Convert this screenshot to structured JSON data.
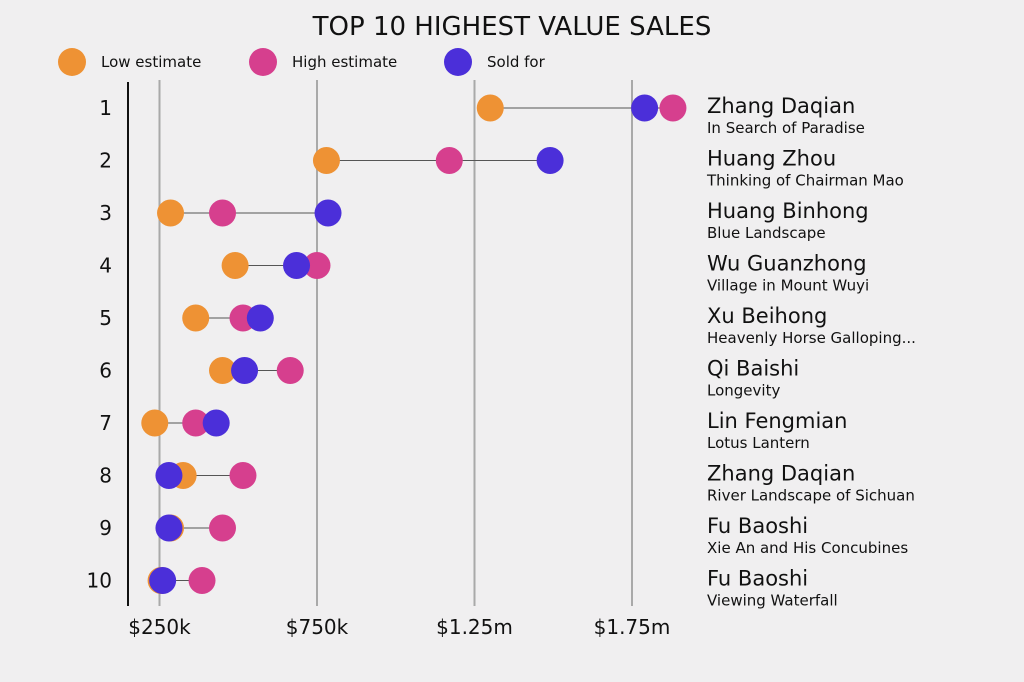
{
  "chart_data": {
    "type": "dot-range",
    "title": "TOP 10 HIGHEST VALUE SALES",
    "legend": [
      {
        "key": "low",
        "label": "Low estimate",
        "color": "#ee9234"
      },
      {
        "key": "high",
        "label": "High estimate",
        "color": "#d63f8e"
      },
      {
        "key": "sold",
        "label": "Sold for",
        "color": "#4b2fd9"
      }
    ],
    "x_ticks": [
      {
        "value": 250000,
        "label": "$250k"
      },
      {
        "value": 750000,
        "label": "$750k"
      },
      {
        "value": 1250000,
        "label": "$1.25m"
      },
      {
        "value": 1750000,
        "label": "$1.75m"
      }
    ],
    "xlim": [
      150000,
      1950000
    ],
    "grid": true,
    "rows": [
      {
        "rank": "1",
        "artist": "Zhang Daqian",
        "work": "In Search of Paradise",
        "low": 1300000,
        "high": 1880000,
        "sold": 1790000
      },
      {
        "rank": "2",
        "artist": "Huang Zhou",
        "work": "Thinking of Chairman Mao",
        "low": 780000,
        "high": 1170000,
        "sold": 1490000
      },
      {
        "rank": "3",
        "artist": "Huang Binhong",
        "work": "Blue Landscape",
        "low": 285000,
        "high": 450000,
        "sold": 785000
      },
      {
        "rank": "4",
        "artist": "Wu Guanzhong",
        "work": "Village in Mount Wuyi",
        "low": 490000,
        "high": 750000,
        "sold": 685000
      },
      {
        "rank": "5",
        "artist": "Xu Beihong",
        "work": "Heavenly Horse Galloping...",
        "low": 365000,
        "high": 515000,
        "sold": 570000
      },
      {
        "rank": "6",
        "artist": "Qi Baishi",
        "work": "Longevity",
        "low": 450000,
        "high": 665000,
        "sold": 520000
      },
      {
        "rank": "7",
        "artist": "Lin Fengmian",
        "work": "Lotus Lantern",
        "low": 235000,
        "high": 365000,
        "sold": 430000
      },
      {
        "rank": "8",
        "artist": "Zhang Daqian",
        "work": "River Landscape of Sichuan",
        "low": 325000,
        "high": 515000,
        "sold": 280000
      },
      {
        "rank": "9",
        "artist": "Fu Baoshi",
        "work": "Xie An and His Concubines",
        "low": 285000,
        "high": 450000,
        "sold": 280000
      },
      {
        "rank": "10",
        "artist": "Fu Baoshi",
        "work": "Viewing Waterfall",
        "low": 255000,
        "high": 385000,
        "sold": 260000
      }
    ]
  }
}
